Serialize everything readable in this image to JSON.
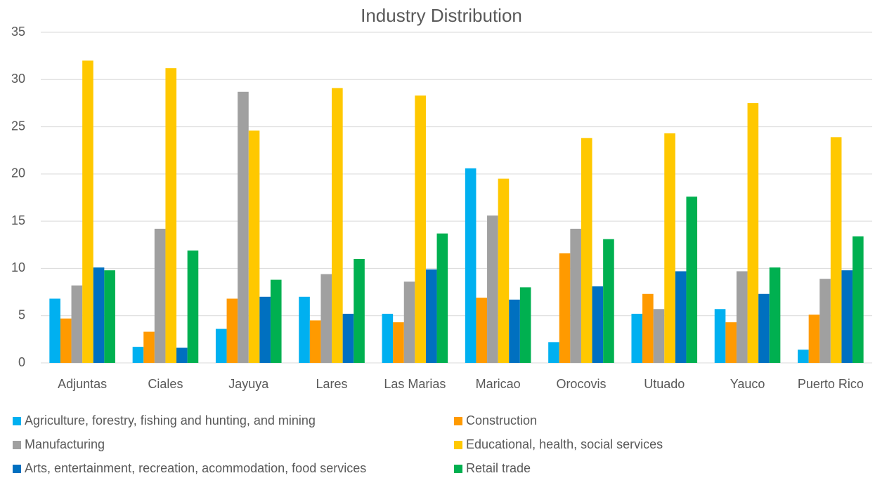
{
  "chart_data": {
    "type": "bar",
    "title": "Industry Distribution",
    "categories": [
      "Adjuntas",
      "Ciales",
      "Jayuya",
      "Lares",
      "Las Marias",
      "Maricao",
      "Orocovis",
      "Utuado",
      "Yauco",
      "Puerto Rico"
    ],
    "series": [
      {
        "name": "Agriculture, forestry, fishing and hunting, and mining",
        "color": "#00b0f0",
        "values": [
          6.8,
          1.7,
          3.6,
          7.0,
          5.2,
          20.6,
          2.2,
          5.2,
          5.7,
          1.4
        ]
      },
      {
        "name": "Construction",
        "color": "#ff9a00",
        "values": [
          4.7,
          3.3,
          6.8,
          4.5,
          4.3,
          6.9,
          11.6,
          7.3,
          4.3,
          5.1
        ]
      },
      {
        "name": "Manufacturing",
        "color": "#a0a0a0",
        "values": [
          8.2,
          14.2,
          28.7,
          9.4,
          8.6,
          15.6,
          14.2,
          5.7,
          9.7,
          8.9
        ]
      },
      {
        "name": "Educational, health, social services",
        "color": "#ffc800",
        "values": [
          32.0,
          31.2,
          24.6,
          29.1,
          28.3,
          19.5,
          23.8,
          24.3,
          27.5,
          23.9
        ]
      },
      {
        "name": "Arts, entertainment, recreation, acommodation, food services",
        "color": "#0070c0",
        "values": [
          10.1,
          1.6,
          7.0,
          5.2,
          9.9,
          6.7,
          8.1,
          9.7,
          7.3,
          9.8
        ]
      },
      {
        "name": "Retail trade",
        "color": "#00b050",
        "values": [
          9.8,
          11.9,
          8.8,
          11.0,
          13.7,
          8.0,
          13.1,
          17.6,
          10.1,
          13.4
        ]
      }
    ],
    "ylim": [
      0,
      35
    ],
    "yticks": [
      0,
      5,
      10,
      15,
      20,
      25,
      30,
      35
    ],
    "grid": true,
    "legend": "bottom"
  }
}
